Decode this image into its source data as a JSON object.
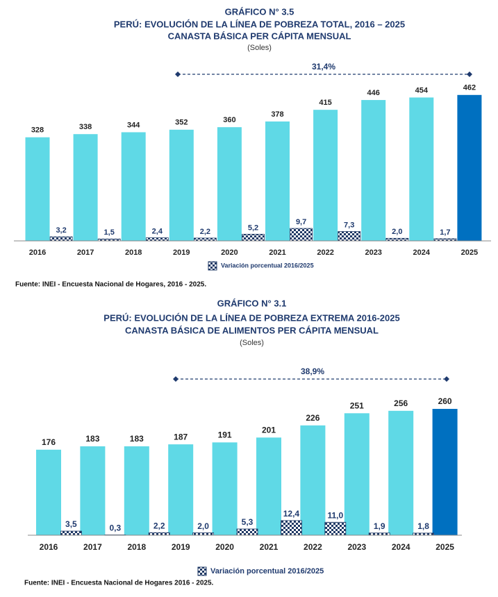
{
  "chart_data": [
    {
      "type": "bar",
      "title": "GRÁFICO N° 3.5",
      "subtitle": [
        "PERÚ: EVOLUCIÓN DE LA LÍNEA DE POBREZA TOTAL, 2016 – 2025",
        "CANASTA BÁSICA PER CÁPITA MENSUAL"
      ],
      "unit_label": "(Soles)",
      "annotation": "31,4%",
      "categories": [
        "2016",
        "2017",
        "2018",
        "2019",
        "2020",
        "2021",
        "2022",
        "2023",
        "2024",
        "2025"
      ],
      "series": [
        {
          "colors": [
            "#5fd9e6",
            "#5fd9e6",
            "#5fd9e6",
            "#5fd9e6",
            "#5fd9e6",
            "#5fd9e6",
            "#5fd9e6",
            "#5fd9e6",
            "#5fd9e6",
            "#0070c0"
          ],
          "values": [
            328,
            338,
            344,
            352,
            360,
            378,
            415,
            446,
            454,
            462
          ]
        },
        {
          "name": "Variación porcentual 2016/2025",
          "color": "#1f3864",
          "pattern": "checker",
          "values": [
            null,
            3.2,
            1.5,
            2.4,
            2.2,
            5.2,
            9.7,
            7.3,
            2.0,
            1.7
          ],
          "value_labels": [
            null,
            "3,2",
            "1,5",
            "2,4",
            "2,2",
            "5,2",
            "9,7",
            "7,3",
            "2,0",
            "1,7"
          ]
        }
      ],
      "source": "Fuente: INEI - Encuesta Nacional de Hogares, 2016 - 2025."
    },
    {
      "type": "bar",
      "title": "GRÁFICO N° 3.1",
      "subtitle": [
        "PERÚ: EVOLUCIÓN DE LA LÍNEA DE POBREZA EXTREMA 2016-2025",
        "CANASTA BÁSICA DE ALIMENTOS PER CÁPITA MENSUAL"
      ],
      "unit_label": "(Soles)",
      "annotation": "38,9%",
      "categories": [
        "2016",
        "2017",
        "2018",
        "2019",
        "2020",
        "2021",
        "2022",
        "2023",
        "2024",
        "2025"
      ],
      "series": [
        {
          "colors": [
            "#5fd9e6",
            "#5fd9e6",
            "#5fd9e6",
            "#5fd9e6",
            "#5fd9e6",
            "#5fd9e6",
            "#5fd9e6",
            "#5fd9e6",
            "#5fd9e6",
            "#0070c0"
          ],
          "values": [
            176,
            183,
            183,
            187,
            191,
            201,
            226,
            251,
            256,
            260
          ]
        },
        {
          "name": "Variación porcentual 2016/2025",
          "color": "#1f3864",
          "pattern": "checker",
          "values": [
            null,
            3.5,
            0.3,
            2.2,
            2.0,
            5.3,
            12.4,
            11.0,
            1.9,
            1.8
          ],
          "value_labels": [
            null,
            "3,5",
            "0,3",
            "2,2",
            "2,0",
            "5,3",
            "12,4",
            "11,0",
            "1,9",
            "1,8"
          ]
        }
      ],
      "source": "Fuente: INEI - Encuesta Nacional de Hogares 2016 - 2025."
    }
  ]
}
